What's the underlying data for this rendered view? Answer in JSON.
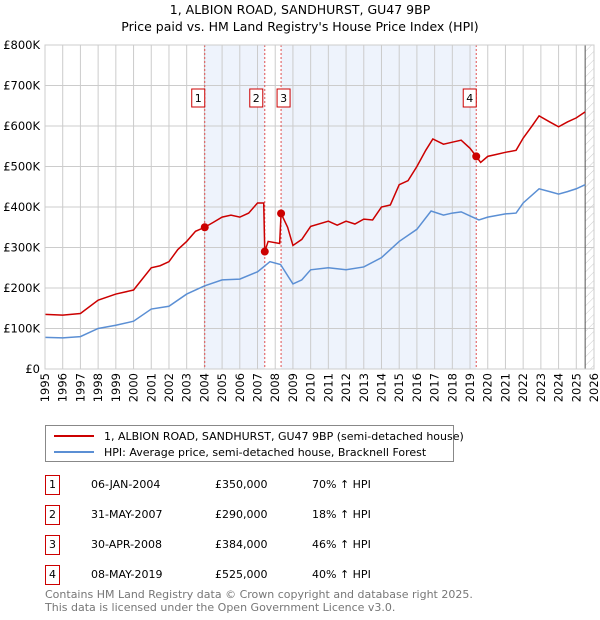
{
  "chart_data": {
    "type": "line",
    "title": "1, ALBION ROAD, SANDHURST, GU47 9BP",
    "subtitle": "Price paid vs. HM Land Registry's House Price Index (HPI)",
    "xlim": [
      1995,
      2026
    ],
    "ylim": [
      0,
      800000
    ],
    "x_ticks": [
      "1995",
      "1996",
      "1997",
      "1998",
      "1999",
      "2000",
      "2001",
      "2002",
      "2003",
      "2004",
      "2005",
      "2006",
      "2007",
      "2008",
      "2009",
      "2010",
      "2011",
      "2012",
      "2013",
      "2014",
      "2015",
      "2016",
      "2017",
      "2018",
      "2019",
      "2020",
      "2021",
      "2022",
      "2023",
      "2024",
      "2025",
      "2026"
    ],
    "y_ticks": [
      {
        "v": 0,
        "l": "£0"
      },
      {
        "v": 100000,
        "l": "£100K"
      },
      {
        "v": 200000,
        "l": "£200K"
      },
      {
        "v": 300000,
        "l": "£300K"
      },
      {
        "v": 400000,
        "l": "£400K"
      },
      {
        "v": 500000,
        "l": "£500K"
      },
      {
        "v": 600000,
        "l": "£600K"
      },
      {
        "v": 700000,
        "l": "£700K"
      },
      {
        "v": 800000,
        "l": "£800K"
      }
    ],
    "grid": true,
    "series": [
      {
        "name": "1, ALBION ROAD, SANDHURST, GU47 9BP (semi-detached house)",
        "color": "#cc0000",
        "x": [
          1995,
          1996,
          1997,
          1998,
          1999,
          2000,
          2001,
          2001.5,
          2002,
          2002.5,
          2003,
          2003.5,
          2004.02,
          2004.5,
          2005,
          2005.5,
          2006,
          2006.5,
          2007,
          2007.35,
          2007.41,
          2007.6,
          2008.25,
          2008.33,
          2008.7,
          2009,
          2009.5,
          2010,
          2011,
          2011.5,
          2012,
          2012.5,
          2013,
          2013.5,
          2014,
          2014.5,
          2015,
          2015.5,
          2016,
          2016.5,
          2016.9,
          2017.5,
          2018,
          2018.5,
          2019,
          2019.35,
          2019.6,
          2020,
          2020.5,
          2021,
          2021.6,
          2022,
          2022.5,
          2022.9,
          2023.5,
          2024,
          2024.5,
          2025,
          2025.5
        ],
        "values": [
          135000,
          133000,
          137000,
          170000,
          185000,
          195000,
          250000,
          255000,
          265000,
          295000,
          315000,
          340000,
          350000,
          362000,
          375000,
          380000,
          375000,
          385000,
          410000,
          410000,
          290000,
          315000,
          310000,
          384000,
          350000,
          305000,
          320000,
          352000,
          365000,
          355000,
          365000,
          358000,
          370000,
          368000,
          400000,
          405000,
          455000,
          465000,
          500000,
          540000,
          568000,
          555000,
          560000,
          565000,
          545000,
          525000,
          510000,
          525000,
          530000,
          535000,
          540000,
          570000,
          600000,
          625000,
          610000,
          598000,
          610000,
          620000,
          635000
        ]
      },
      {
        "name": "HPI: Average price, semi-detached house, Bracknell Forest",
        "color": "#5b8fd4",
        "x": [
          1995,
          1996,
          1997,
          1998,
          1999,
          2000,
          2001,
          2002,
          2003,
          2004,
          2005,
          2006,
          2007,
          2007.7,
          2008.3,
          2009,
          2009.5,
          2010,
          2011,
          2012,
          2013,
          2014,
          2015,
          2016,
          2016.8,
          2017.5,
          2018,
          2018.5,
          2019,
          2019.5,
          2020,
          2021,
          2021.6,
          2022,
          2022.9,
          2023.5,
          2024,
          2024.5,
          2025,
          2025.5
        ],
        "values": [
          78000,
          77000,
          80000,
          100000,
          108000,
          118000,
          148000,
          155000,
          185000,
          205000,
          220000,
          222000,
          240000,
          265000,
          258000,
          210000,
          220000,
          245000,
          250000,
          245000,
          252000,
          275000,
          315000,
          345000,
          390000,
          380000,
          385000,
          388000,
          378000,
          368000,
          375000,
          383000,
          385000,
          410000,
          445000,
          438000,
          432000,
          438000,
          445000,
          455000
        ]
      }
    ],
    "sales": [
      {
        "n": "1",
        "x": 2004.02,
        "price": 350000,
        "date": "06-JAN-2004",
        "price_label": "£350,000",
        "hpi": "70% ↑ HPI"
      },
      {
        "n": "2",
        "x": 2007.41,
        "price": 290000,
        "date": "31-MAY-2007",
        "price_label": "£290,000",
        "hpi": "18% ↑ HPI"
      },
      {
        "n": "3",
        "x": 2008.33,
        "price": 384000,
        "date": "30-APR-2008",
        "price_label": "£384,000",
        "hpi": "46% ↑ HPI"
      },
      {
        "n": "4",
        "x": 2019.35,
        "price": 525000,
        "date": "08-MAY-2019",
        "price_label": "£525,000",
        "hpi": "40% ↑ HPI"
      }
    ],
    "forecast_start": 2025.5
  },
  "footer": [
    "Contains HM Land Registry data © Crown copyright and database right 2025.",
    "This data is licensed under the Open Government Licence v3.0."
  ]
}
